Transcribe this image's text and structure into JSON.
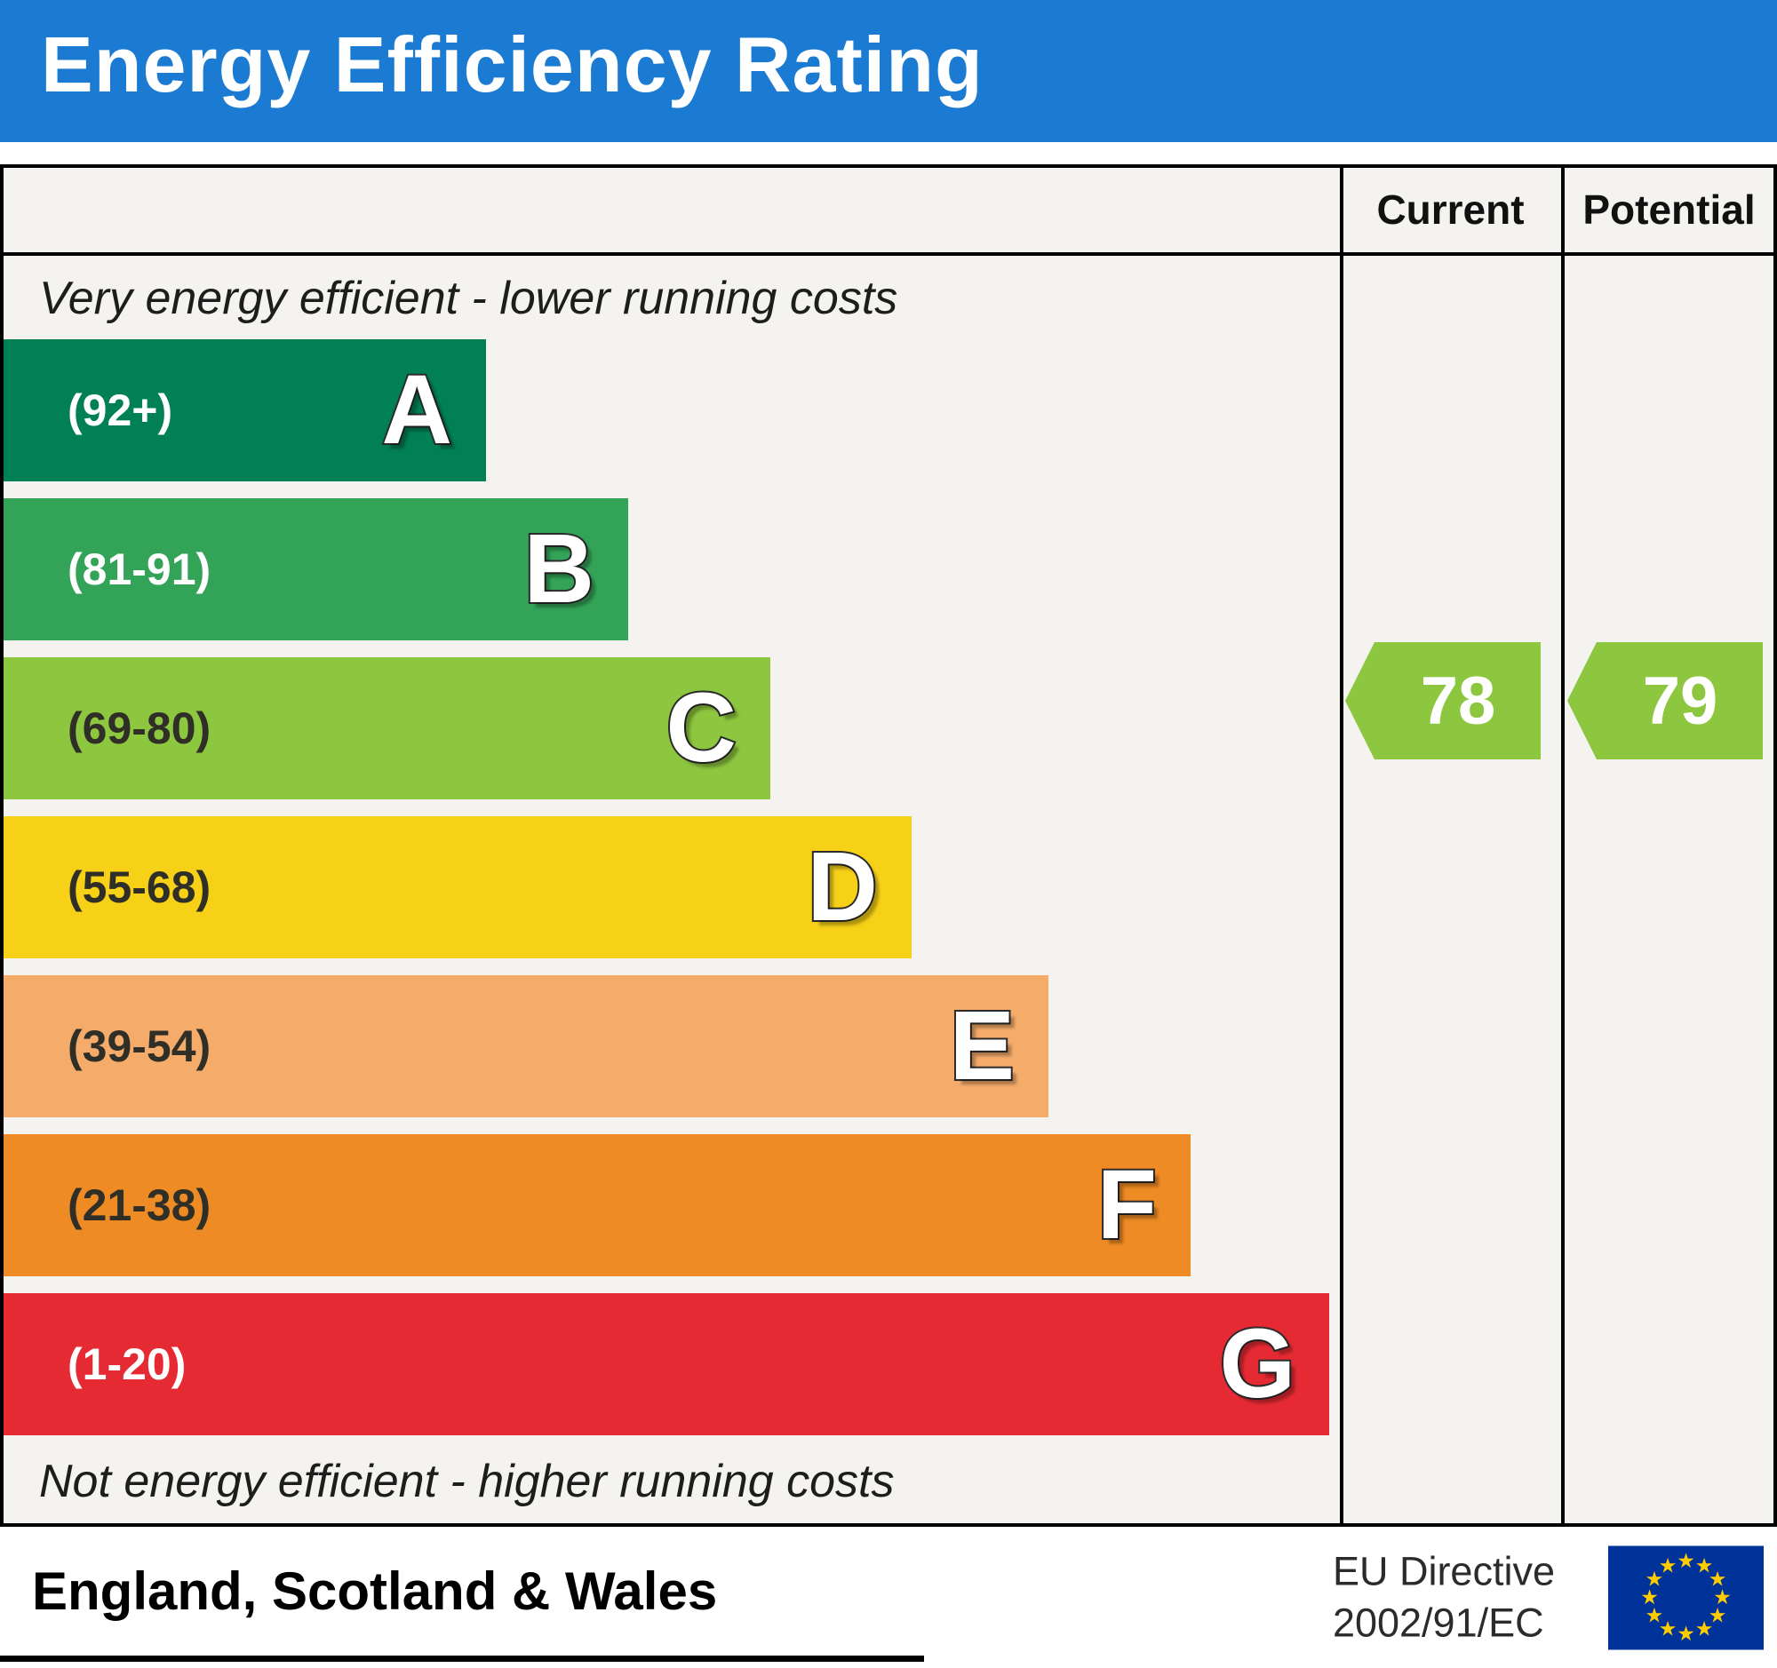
{
  "title": "Energy Efficiency Rating",
  "header": {
    "current_label": "Current",
    "potential_label": "Potential"
  },
  "notes": {
    "top": "Very energy efficient - lower running costs",
    "bottom": "Not energy efficient - higher running costs"
  },
  "bands": [
    {
      "letter": "A",
      "range": "(92+)",
      "color": "#008054"
    },
    {
      "letter": "B",
      "range": "(81-91)",
      "color": "#33a357"
    },
    {
      "letter": "C",
      "range": "(69-80)",
      "color": "#8dc63f"
    },
    {
      "letter": "D",
      "range": "(55-68)",
      "color": "#f7d117"
    },
    {
      "letter": "E",
      "range": "(39-54)",
      "color": "#f5ab6a"
    },
    {
      "letter": "F",
      "range": "(21-38)",
      "color": "#ef8b24"
    },
    {
      "letter": "G",
      "range": "(1-20)",
      "color": "#e52a33"
    }
  ],
  "ratings": {
    "current": {
      "value": "78",
      "band": "C",
      "color": "#8dc63f"
    },
    "potential": {
      "value": "79",
      "band": "C",
      "color": "#8dc63f"
    }
  },
  "footer": {
    "region": "England, Scotland & Wales",
    "directive_line1": "EU Directive",
    "directive_line2": "2002/91/EC"
  },
  "colors": {
    "header_bg": "#1b7ad1",
    "table_bg": "#f4f3ef",
    "eu_flag_bg": "#003399",
    "eu_star": "#ffcc00"
  },
  "chart_data": {
    "type": "bar",
    "title": "Energy Efficiency Rating",
    "categories": [
      "A",
      "B",
      "C",
      "D",
      "E",
      "F",
      "G"
    ],
    "band_ranges": [
      "92+",
      "81-91",
      "69-80",
      "55-68",
      "39-54",
      "21-38",
      "1-20"
    ],
    "band_colors": [
      "#008054",
      "#33a357",
      "#8dc63f",
      "#f7d117",
      "#f5ab6a",
      "#ef8b24",
      "#e52a33"
    ],
    "series": [
      {
        "name": "Current",
        "value": 78,
        "band": "C"
      },
      {
        "name": "Potential",
        "value": 79,
        "band": "C"
      }
    ],
    "scale": [
      1,
      100
    ],
    "notes": [
      "Very energy efficient - lower running costs",
      "Not energy efficient - higher running costs"
    ],
    "region": "England, Scotland & Wales",
    "directive": "EU Directive 2002/91/EC",
    "legend_position": "none",
    "grid": false
  }
}
